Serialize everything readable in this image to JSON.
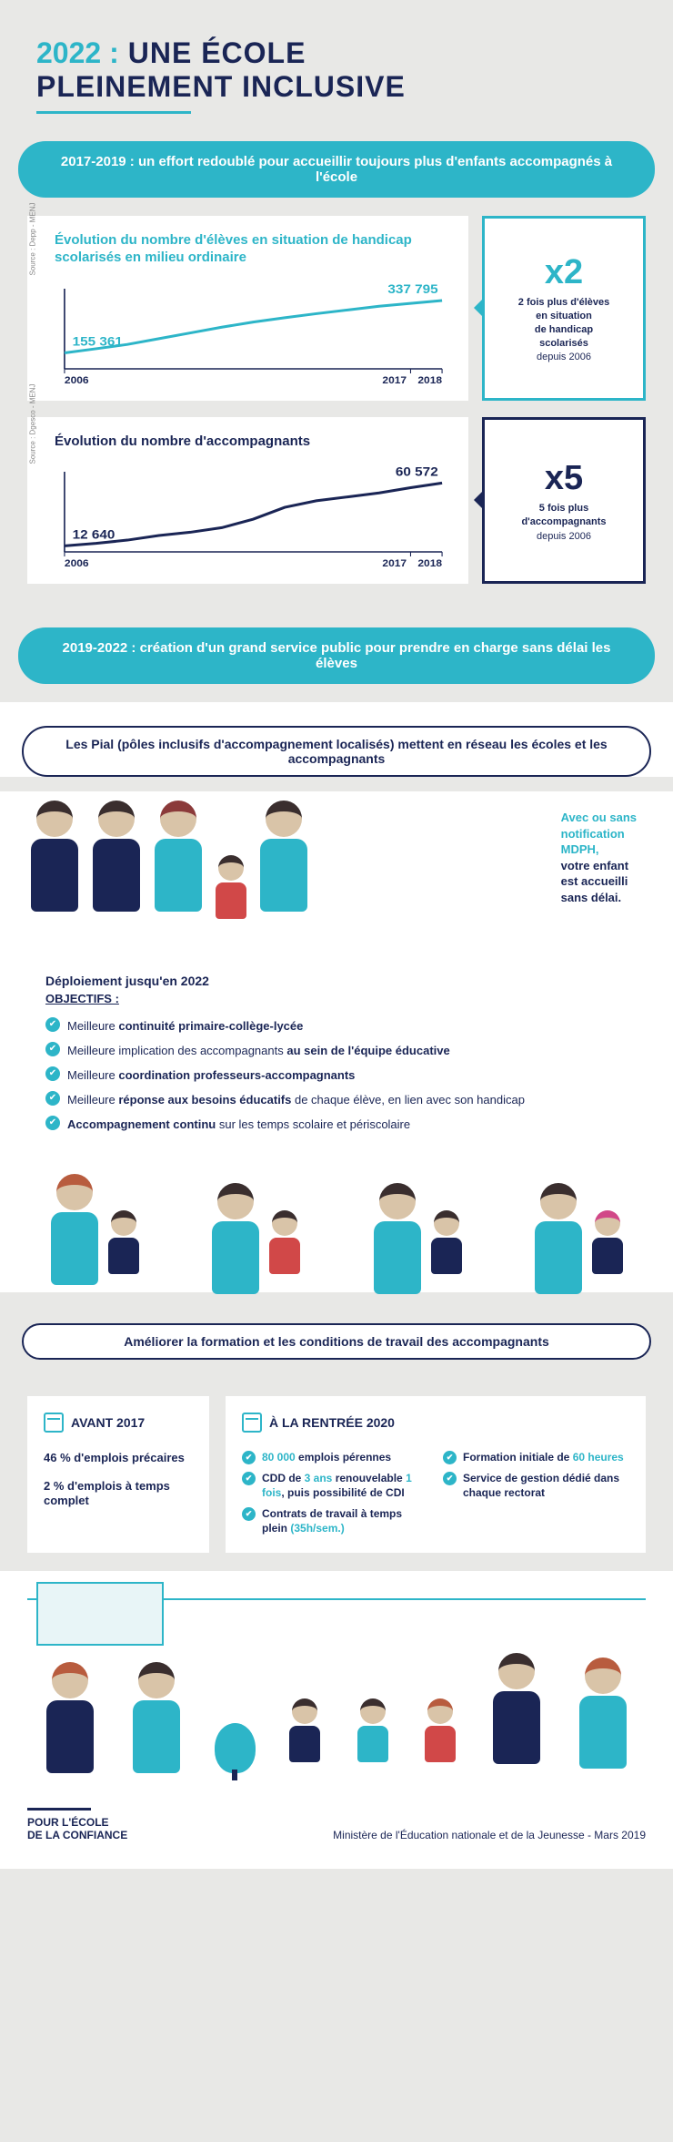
{
  "header": {
    "year": "2022 :",
    "title_line1": "UNE ÉCOLE",
    "title_line2": "PLEINEMENT INCLUSIVE"
  },
  "banner1": "2017-2019 :  un effort redoublé pour accueillir toujours plus d'enfants accompagnés à l'école",
  "chart1": {
    "title": "Évolution du nombre d'élèves en situation de handicap scolarisés en milieu ordinaire",
    "color": "#2db5c8",
    "start_label": "155 361",
    "end_label": "337 795",
    "x_start": "2006",
    "x_end1": "2017",
    "x_end2": "2018",
    "values": [
      155361,
      170000,
      185000,
      205000,
      225000,
      245000,
      263000,
      278000,
      292000,
      305000,
      318000,
      328000,
      337795
    ],
    "ymin": 100000,
    "ymax": 360000,
    "source": "Source : Depp - MENJ"
  },
  "stat1": {
    "big": "x2",
    "line1": "2 fois plus d'élèves",
    "line2": "en situation",
    "line3": "de handicap",
    "line4": "scolarisés",
    "since": "depuis 2006"
  },
  "chart2": {
    "title": "Évolution du nombre d'accompagnants",
    "color": "#1a2555",
    "start_label": "12 640",
    "end_label": "60 572",
    "x_start": "2006",
    "x_end1": "2017",
    "x_end2": "2018",
    "values": [
      12640,
      14500,
      17000,
      20500,
      23000,
      26500,
      33000,
      42000,
      47000,
      50000,
      53000,
      57000,
      60572
    ],
    "ymin": 8000,
    "ymax": 65000,
    "source": "Source : Dgesco - MENJ"
  },
  "stat2": {
    "big": "x5",
    "line1": "5 fois plus",
    "line2": "d'accompagnants",
    "since": "depuis 2006"
  },
  "banner2": "2019-2022 : création d'un grand service public pour prendre en charge sans délai les élèves",
  "pill1": "Les Pial (pôles inclusifs d'accompagnement localisés) mettent en réseau les écoles et les accompagnants",
  "side_note": {
    "l1": "Avec ou sans",
    "l2": "notification",
    "l3": "MDPH,",
    "l4": "votre enfant",
    "l5": "est accueilli",
    "l6": "sans délai."
  },
  "objectives": {
    "heading": "Déploiement jusqu'en 2022",
    "sub": "OBJECTIFS :",
    "items": [
      "Meilleure <b>continuité primaire-collège-lycée</b>",
      "Meilleure implication des accompagnants <b>au sein de l'équipe éducative</b>",
      "Meilleure <b>coordination professeurs-accompagnants</b>",
      "Meilleure <b>réponse aux besoins éducatifs</b> de chaque élève, en lien avec son handicap",
      "<b>Accompagnement continu</b> sur les temps scolaire et périscolaire"
    ]
  },
  "pill2": "Améliorer la formation et les conditions de travail des accompagnants",
  "comparison": {
    "left_title": "AVANT 2017",
    "left_items": [
      "46 % d'emplois précaires",
      "2 % d'emplois à temps complet"
    ],
    "right_title": "À LA RENTRÉE 2020",
    "right_items": [
      "<span class='teal-num'>80 000</span> emplois pérennes",
      "Formation initiale de <span class='teal-num'>60 heures</span>",
      "CDD de <span class='teal-num'>3 ans</span> renouvelable <span class='teal-num'>1 fois</span>, puis possibilité de CDI",
      "Service de gestion dédié dans chaque rectorat",
      "Contrats de travail à temps plein <span class='teal-num'>(35h/sem.)</span>"
    ]
  },
  "footer": {
    "logo1": "POUR L'ÉCOLE",
    "logo2": "DE LA CONFIANCE",
    "credit": "Ministère de l'Éducation nationale et de la Jeunesse - Mars 2019"
  }
}
